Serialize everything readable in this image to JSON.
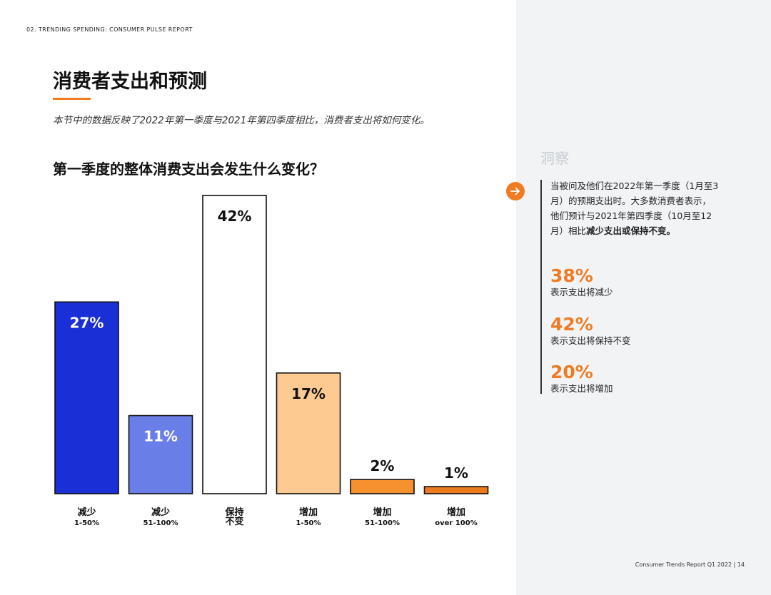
{
  "header": {
    "section_label": "02. TRENDING SPENDING: CONSUMER PULSE REPORT"
  },
  "page": {
    "title": "消费者支出和预测",
    "subtitle": "本节中的数据反映了2022年第一季度与2021年第四季度相比，消费者支出将如何变化。",
    "question": "第一季度的整体消费支出会发生什么变化？"
  },
  "chart_data": {
    "type": "bar",
    "title": "",
    "xlabel": "",
    "ylabel": "",
    "ylim": [
      0,
      42
    ],
    "grid": false,
    "categories": [
      "减少 1-50%",
      "减少 51-100%",
      "保持 不变",
      "增加 1-50%",
      "增加 51-100%",
      "增加 over 100%"
    ],
    "category_lines": [
      [
        "减少",
        "1-50%"
      ],
      [
        "减少",
        "51-100%"
      ],
      [
        "保持",
        "不变"
      ],
      [
        "增加",
        "1-50%"
      ],
      [
        "增加",
        "51-100%"
      ],
      [
        "增加",
        "over 100%"
      ]
    ],
    "values": [
      27,
      11,
      42,
      17,
      2,
      1
    ],
    "value_labels": [
      "27%",
      "11%",
      "42%",
      "17%",
      "2%",
      "1%"
    ],
    "colors": [
      "#1a2fd6",
      "#6a7ee8",
      "#ffffff",
      "#fdcb92",
      "#f5912f",
      "#ee7a1e"
    ],
    "label_colors": [
      "#ffffff",
      "#ffffff",
      "#111111",
      "#111111",
      "#111111",
      "#111111"
    ],
    "label_inside": [
      true,
      true,
      true,
      true,
      false,
      false
    ]
  },
  "insight": {
    "title": "洞察",
    "text_plain": "当被问及他们在2022年第一季度（1月至3月）的预期支出时。大多数消费者表示，他们预计与2021年第四季度（10月至12月）相比",
    "text_bold": "减少支出或保持不变。",
    "stats": [
      {
        "value": "38%",
        "label": "表示支出将减少"
      },
      {
        "value": "42%",
        "label": "表示支出将保持不变"
      },
      {
        "value": "20%",
        "label": "表示支出将增加"
      }
    ],
    "icon": "arrow-right-icon",
    "accent": "#f07b22"
  },
  "footer": {
    "text": "Consumer Trends Report Q1 2022  |   14"
  }
}
